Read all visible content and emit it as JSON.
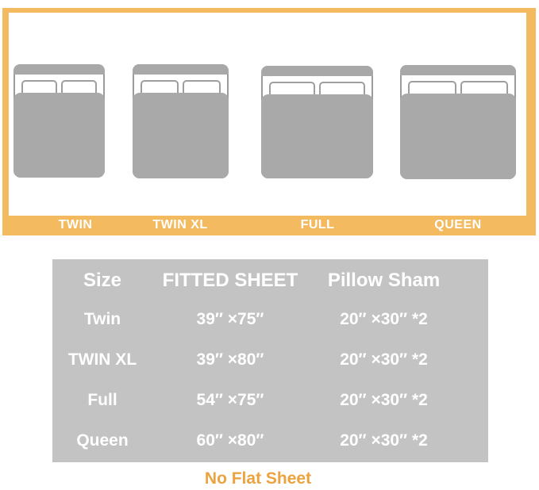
{
  "diagram": {
    "accent_color": "#F4BA5F",
    "bed_fill_color": "#A9A9A9",
    "bed_outline_color": "#9B9B9B",
    "beds": [
      {
        "label": "TWIN"
      },
      {
        "label": "TWIN XL"
      },
      {
        "label": "FULL"
      },
      {
        "label": "QUEEN"
      }
    ]
  },
  "table": {
    "background_color": "#C3C3C3",
    "text_color": "#FFFFFF",
    "headers": [
      "Size",
      "FITTED SHEET",
      "Pillow Sham"
    ],
    "rows": [
      {
        "size": "Twin",
        "fitted_sheet": "39″ ×75″",
        "pillow_sham": "20″ ×30″ *2"
      },
      {
        "size": "TWIN XL",
        "fitted_sheet": "39″ ×80″",
        "pillow_sham": "20″ ×30″ *2"
      },
      {
        "size": "Full",
        "fitted_sheet": "54″ ×75″",
        "pillow_sham": "20″ ×30″ *2"
      },
      {
        "size": "Queen",
        "fitted_sheet": "60″ ×80″",
        "pillow_sham": "20″ ×30″ *2"
      }
    ]
  },
  "footnote": {
    "text": "No Flat Sheet",
    "color": "#ECA33F"
  }
}
